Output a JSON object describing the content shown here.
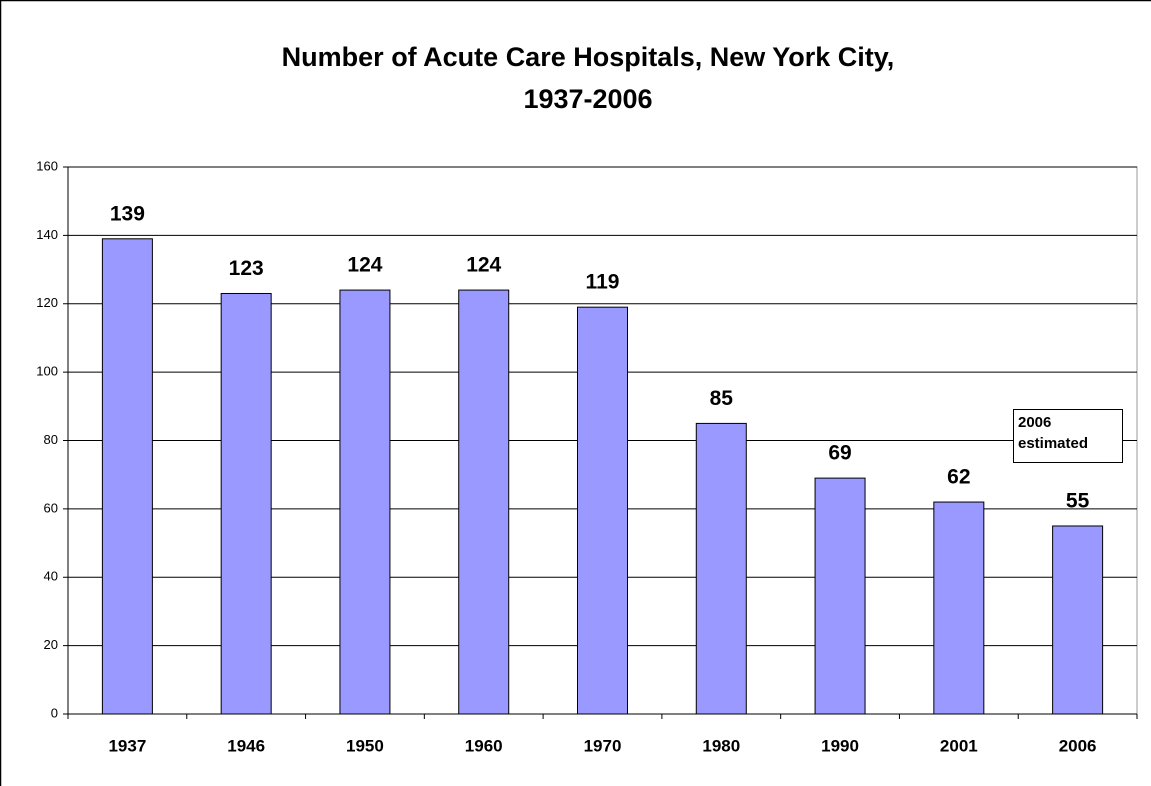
{
  "chart_data": {
    "type": "bar",
    "title": [
      "Number of Acute Care Hospitals, New York City,",
      "1937-2006"
    ],
    "categories": [
      "1937",
      "1946",
      "1950",
      "1960",
      "1970",
      "1980",
      "1990",
      "2001",
      "2006"
    ],
    "values": [
      139,
      123,
      124,
      124,
      119,
      85,
      69,
      62,
      55
    ],
    "color": "#9999ff",
    "ylim": [
      0,
      160
    ],
    "yticks": [
      0,
      20,
      40,
      60,
      80,
      100,
      120,
      140,
      160
    ],
    "grid": true,
    "annotation": "2006 estimated"
  }
}
